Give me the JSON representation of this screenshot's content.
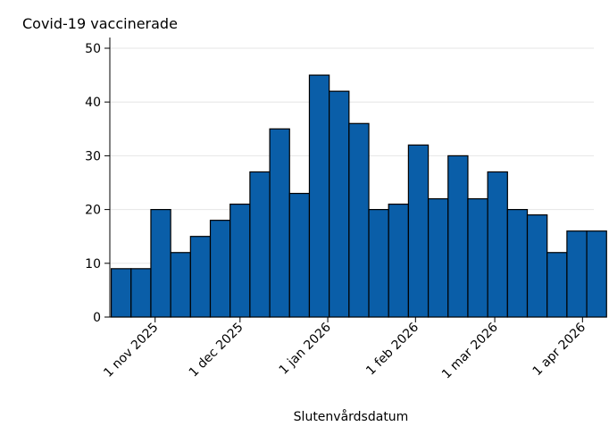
{
  "chart_data": {
    "type": "bar",
    "title": "Covid-19 vaccinerade",
    "xlabel": "Slutenvårdsdatum",
    "ylabel": "",
    "ylim": [
      0,
      50
    ],
    "yticks": [
      0,
      10,
      20,
      30,
      40,
      50
    ],
    "grid": true,
    "bar_width_days": 7,
    "colors": {
      "bar": "#0a5ea8",
      "bar_edge": "#000000",
      "grid": "#e6e6e6"
    },
    "x_axis": {
      "type": "date",
      "range": [
        "2025-10-16",
        "2026-04-05"
      ],
      "ticks": [
        {
          "date": "2025-11-01",
          "label": "1 nov 2025"
        },
        {
          "date": "2025-12-01",
          "label": "1 dec 2025"
        },
        {
          "date": "2026-01-01",
          "label": "1 jan 2026"
        },
        {
          "date": "2026-02-01",
          "label": "1 feb 2026"
        },
        {
          "date": "2026-03-01",
          "label": "1 mar 2026"
        },
        {
          "date": "2026-04-01",
          "label": "1 apr 2026"
        }
      ]
    },
    "x": [
      "2025-10-20",
      "2025-10-27",
      "2025-11-03",
      "2025-11-10",
      "2025-11-17",
      "2025-11-24",
      "2025-12-01",
      "2025-12-08",
      "2025-12-15",
      "2025-12-22",
      "2025-12-29",
      "2026-01-05",
      "2026-01-12",
      "2026-01-19",
      "2026-01-26",
      "2026-02-02",
      "2026-02-09",
      "2026-02-16",
      "2026-02-23",
      "2026-03-02",
      "2026-03-09",
      "2026-03-16",
      "2026-03-23",
      "2026-03-30",
      "2026-04-06"
    ],
    "values": [
      9,
      9,
      20,
      12,
      15,
      18,
      21,
      27,
      35,
      23,
      45,
      42,
      36,
      20,
      21,
      32,
      22,
      30,
      22,
      27,
      20,
      19,
      12,
      16,
      16
    ]
  }
}
